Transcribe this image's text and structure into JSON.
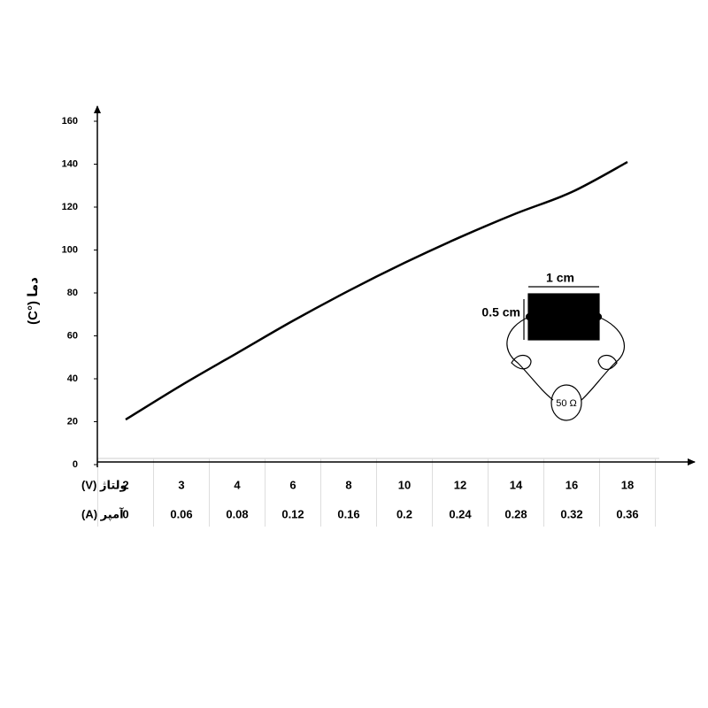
{
  "chart_data": {
    "type": "line",
    "y_label": "دما (°C)",
    "x_label": "ولتاژ (V)",
    "categories": [
      2,
      3,
      4,
      6,
      8,
      10,
      12,
      14,
      16,
      18
    ],
    "current": {
      "label": "آمپر (A)",
      "values": [
        0,
        0.06,
        0.08,
        0.12,
        0.16,
        0.2,
        0.24,
        0.28,
        0.32,
        0.36
      ]
    },
    "values": [
      21,
      37,
      52,
      67,
      81,
      94,
      106,
      117,
      127,
      141
    ],
    "color": "#000000",
    "ylim": [
      0,
      160
    ],
    "yticks": [
      0,
      20,
      40,
      60,
      80,
      100,
      120,
      140,
      160
    ],
    "annotations": {
      "width": "1 cm",
      "height": "0.5 cm",
      "resistor": "50 Ω"
    }
  }
}
